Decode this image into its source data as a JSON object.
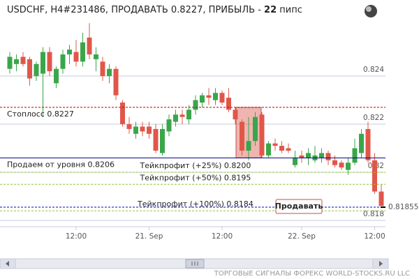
{
  "chart_data": {
    "type": "candlestick",
    "title": {
      "text": "USDCHF, H4#231486, ПРОДАВАТЬ 0.8227, ПРИБЫЛЬ -",
      "pips": 22,
      "unit": "пипс"
    },
    "up_color": "#3aa64a",
    "down_color": "#e0574a",
    "x": [
      0,
      1,
      2,
      3,
      4,
      5,
      6,
      7,
      8,
      9,
      10,
      11,
      12,
      13,
      14,
      15,
      16,
      17,
      18,
      19,
      20,
      21,
      22,
      23,
      24,
      25,
      26,
      27,
      28,
      29,
      30,
      31,
      32,
      33,
      34,
      35,
      36,
      37,
      38,
      39,
      40,
      41,
      42,
      43,
      44,
      45,
      46,
      47,
      48,
      49,
      50,
      51,
      52,
      53,
      54,
      55,
      56
    ],
    "open": [
      0.8243,
      0.8245,
      0.8248,
      0.8247,
      0.824,
      0.8241,
      0.825,
      0.8237,
      0.8243,
      0.8249,
      0.825,
      0.8246,
      0.8256,
      0.8247,
      0.8246,
      0.824,
      0.8243,
      0.8229,
      0.822,
      0.8216,
      0.8219,
      0.8219,
      0.8218,
      0.8208,
      0.8217,
      0.8221,
      0.8224,
      0.8222,
      0.8226,
      0.8229,
      0.8232,
      0.823,
      0.8233,
      0.8231,
      0.8226,
      0.8221,
      0.8209,
      0.8213,
      0.8224,
      0.8207,
      0.8212,
      0.8211,
      0.821,
      0.8203,
      0.8207,
      0.8206,
      0.8205,
      0.8206,
      0.8208,
      0.8205,
      0.8204,
      0.8201,
      0.8204,
      0.8208,
      0.8218,
      0.8205,
      0.8192
    ],
    "high": [
      0.825,
      0.8249,
      0.825,
      0.8248,
      0.8246,
      0.8252,
      0.8252,
      0.8244,
      0.8251,
      0.8253,
      0.8255,
      0.8258,
      0.8262,
      0.8252,
      0.8248,
      0.8245,
      0.8244,
      0.823,
      0.8223,
      0.8221,
      0.8221,
      0.8221,
      0.822,
      0.822,
      0.8224,
      0.8226,
      0.8226,
      0.8228,
      0.8232,
      0.8233,
      0.8235,
      0.8235,
      0.8234,
      0.8235,
      0.8227,
      0.8222,
      0.8223,
      0.8225,
      0.8225,
      0.8213,
      0.8214,
      0.8213,
      0.8212,
      0.8209,
      0.8209,
      0.821,
      0.8211,
      0.821,
      0.8209,
      0.8207,
      0.8205,
      0.8206,
      0.8214,
      0.8218,
      0.8221,
      0.8208,
      0.8195
    ],
    "low": [
      0.8241,
      0.8242,
      0.8244,
      0.8236,
      0.8238,
      0.8223,
      0.824,
      0.8235,
      0.8241,
      0.8245,
      0.8244,
      0.8244,
      0.8247,
      0.8242,
      0.8238,
      0.8237,
      0.823,
      0.8219,
      0.8216,
      0.8214,
      0.8215,
      0.8214,
      0.8208,
      0.8207,
      0.8215,
      0.8219,
      0.822,
      0.822,
      0.8224,
      0.8227,
      0.8228,
      0.8228,
      0.8228,
      0.8225,
      0.822,
      0.8207,
      0.8205,
      0.8211,
      0.8206,
      0.8206,
      0.8209,
      0.8208,
      0.8208,
      0.8202,
      0.8204,
      0.8203,
      0.8204,
      0.8204,
      0.8203,
      0.8202,
      0.8201,
      0.8199,
      0.8203,
      0.8206,
      0.8204,
      0.8191,
      0.8186
    ],
    "close": [
      0.8248,
      0.8247,
      0.8245,
      0.8239,
      0.8245,
      0.825,
      0.8242,
      0.8243,
      0.8249,
      0.8251,
      0.8246,
      0.8254,
      0.8249,
      0.8249,
      0.824,
      0.8243,
      0.8232,
      0.822,
      0.8218,
      0.8219,
      0.8217,
      0.8216,
      0.8209,
      0.8218,
      0.8222,
      0.8224,
      0.8223,
      0.8226,
      0.823,
      0.8232,
      0.8231,
      0.8233,
      0.8229,
      0.8226,
      0.8222,
      0.8209,
      0.8213,
      0.8223,
      0.8207,
      0.8212,
      0.8211,
      0.8209,
      0.8209,
      0.8206,
      0.8206,
      0.8208,
      0.8207,
      0.8208,
      0.8205,
      0.8203,
      0.8202,
      0.8204,
      0.821,
      0.8216,
      0.8205,
      0.8192,
      0.8186
    ],
    "xlim": [
      -1,
      57.5
    ],
    "xticks": [
      {
        "value": 10,
        "label": "12:00"
      },
      {
        "value": 21,
        "label": "21. Sep"
      },
      {
        "value": 32,
        "label": "12:00"
      },
      {
        "value": 44,
        "label": "22. Sep"
      },
      {
        "value": 55,
        "label": "12:00"
      }
    ],
    "ylim": [
      0.81716,
      0.82635
    ],
    "yticks": [
      0.824,
      0.822,
      0.82,
      0.818
    ],
    "grid": true,
    "levels": [
      {
        "label": "Стоплосс 0.8227",
        "value": 0.8227,
        "color": "#c00000"
      },
      {
        "label": "Продаем от уровня 0.8206",
        "value": 0.8206,
        "color": "#000080"
      },
      {
        "label": "Тейкпрофит (+25%) 0.8200",
        "value": 0.82,
        "color": "#8fc43a"
      },
      {
        "label": "Тейкпрофит (+50%) 0.8195",
        "value": 0.8195,
        "color": "#8fc43a"
      },
      {
        "label": "Тейкпрофит (+100%) 0.8184",
        "value": 0.8184,
        "color": "#8fc43a"
      }
    ],
    "price": 0.81855,
    "price_color": "#0000cc",
    "button": "Продавать",
    "footer": "ТОРГОВЫЕ СИГНАЛЫ ФОРЕКС WORLD-STOCKS.RU LLC"
  }
}
